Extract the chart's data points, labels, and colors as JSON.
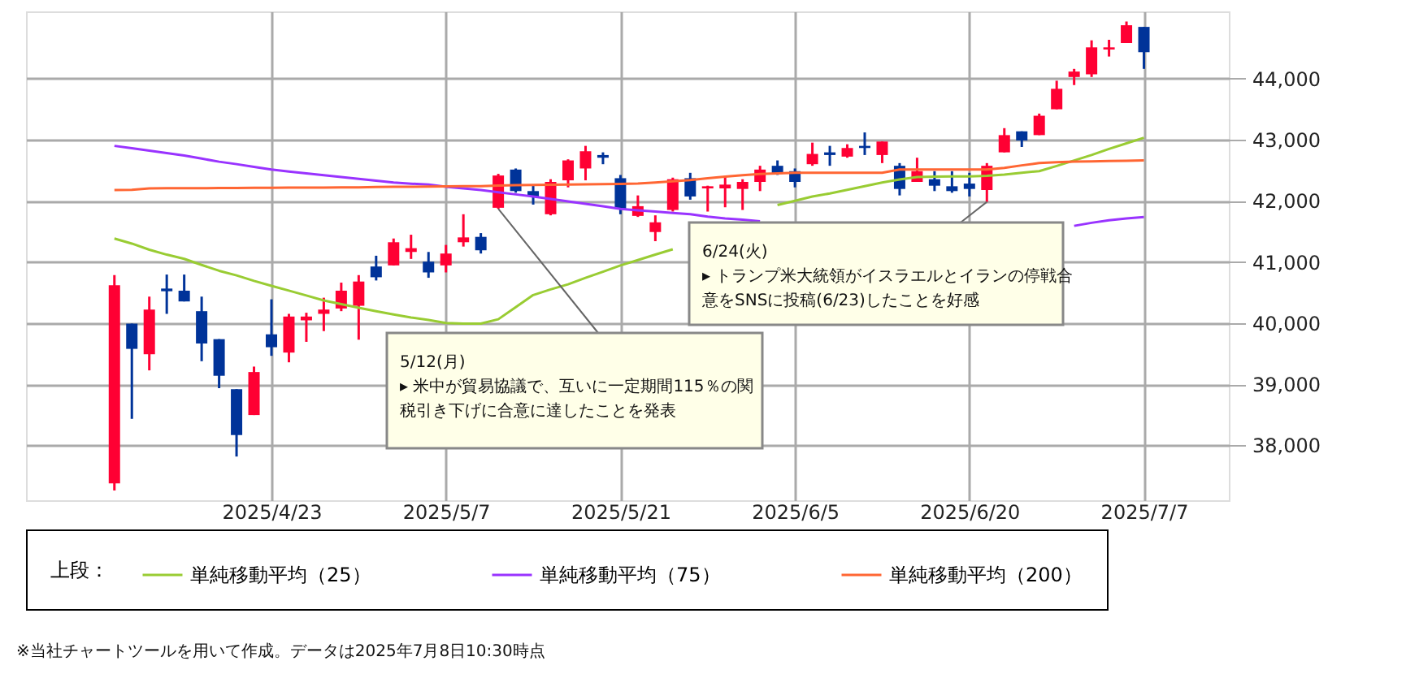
{
  "chart_data": {
    "type": "candlestick",
    "categories": [
      null,
      null,
      null,
      null,
      null,
      null,
      null,
      null,
      null,
      "2025/4/23",
      null,
      null,
      null,
      null,
      null,
      null,
      null,
      null,
      null,
      "2025/5/7",
      null,
      null,
      null,
      null,
      null,
      null,
      null,
      null,
      null,
      "2025/5/21",
      null,
      null,
      null,
      null,
      null,
      null,
      null,
      null,
      null,
      "2025/6/5",
      null,
      null,
      null,
      null,
      null,
      null,
      null,
      null,
      null,
      "2025/6/20",
      null,
      null,
      null,
      null,
      null,
      null,
      null,
      null,
      null,
      "2025/7/7"
    ],
    "ohlc": [
      [
        37375,
        40784,
        37260,
        40617
      ],
      [
        39990,
        39990,
        38432,
        39577
      ],
      [
        39489,
        40432,
        39225,
        40220
      ],
      [
        40564,
        40793,
        40150,
        40520
      ],
      [
        40529,
        40793,
        40353,
        40353
      ],
      [
        40194,
        40432,
        39375,
        39665
      ],
      [
        39736,
        39736,
        38934,
        39137
      ],
      [
        38917,
        38917,
        37815,
        38168
      ],
      [
        38494,
        39287,
        38494,
        39198
      ],
      [
        39815,
        40388,
        39463,
        39604
      ],
      [
        39516,
        40150,
        39357,
        40106
      ],
      [
        40044,
        40168,
        39692,
        40106
      ],
      [
        40150,
        40414,
        39868,
        40220
      ],
      [
        40238,
        40661,
        40194,
        40529
      ],
      [
        40282,
        40784,
        39727,
        40679
      ],
      [
        40925,
        41101,
        40696,
        40749
      ],
      [
        40943,
        41383,
        40943,
        41322
      ],
      [
        41163,
        41445,
        41049,
        41225
      ],
      [
        41004,
        41163,
        40740,
        40828
      ],
      [
        40943,
        41278,
        40828,
        41137
      ],
      [
        41322,
        41780,
        41251,
        41401
      ],
      [
        41410,
        41471,
        41137,
        41190
      ],
      [
        41886,
        42441,
        41868,
        42414
      ],
      [
        42511,
        42529,
        42132,
        42159
      ],
      [
        42159,
        42265,
        41938,
        42071
      ],
      [
        41780,
        42353,
        41762,
        42309
      ],
      [
        42335,
        42679,
        42220,
        42661
      ],
      [
        42529,
        42899,
        42335,
        42811
      ],
      [
        42749,
        42793,
        42599,
        42705
      ],
      [
        42370,
        42423,
        41780,
        41868
      ],
      [
        41753,
        42088,
        41736,
        41912
      ],
      [
        41489,
        41762,
        41339,
        41648
      ],
      [
        41850,
        42379,
        41824,
        42353
      ],
      [
        42370,
        42458,
        42018,
        42071
      ],
      [
        42203,
        42247,
        41824,
        42238
      ],
      [
        42203,
        42397,
        41894,
        42265
      ],
      [
        42194,
        42353,
        41850,
        42309
      ],
      [
        42309,
        42573,
        42159,
        42511
      ],
      [
        42573,
        42661,
        42423,
        42441
      ],
      [
        42485,
        42529,
        42220,
        42309
      ],
      [
        42599,
        42952,
        42573,
        42767
      ],
      [
        42793,
        42899,
        42573,
        42749
      ],
      [
        42723,
        42925,
        42705,
        42864
      ],
      [
        42899,
        43119,
        42749,
        42864
      ],
      [
        42749,
        42970,
        42617,
        42970
      ],
      [
        42573,
        42617,
        42088,
        42194
      ],
      [
        42309,
        42705,
        42309,
        42485
      ],
      [
        42353,
        42485,
        42159,
        42247
      ],
      [
        42238,
        42485,
        42132,
        42159
      ],
      [
        42282,
        42458,
        42071,
        42194
      ],
      [
        42176,
        42617,
        41982,
        42573
      ],
      [
        42793,
        43189,
        42793,
        43075
      ],
      [
        43137,
        43137,
        42881,
        42987
      ],
      [
        43075,
        43427,
        43075,
        43392
      ],
      [
        43498,
        43965,
        43498,
        43833
      ],
      [
        44026,
        44159,
        43894,
        44115
      ],
      [
        44070,
        44626,
        44026,
        44511
      ],
      [
        44476,
        44635,
        44361,
        44511
      ],
      [
        44582,
        44934,
        44582,
        44873
      ],
      [
        44846,
        44846,
        44159,
        44432
      ]
    ],
    "colors": [
      "#ff0033",
      "#003399",
      "#ff0033",
      "#003399",
      "#003399",
      "#003399",
      "#003399",
      "#003399",
      "#ff0033",
      "#003399",
      "#ff0033",
      "#ff0033",
      "#ff0033",
      "#ff0033",
      "#ff0033",
      "#003399",
      "#ff0033",
      "#ff0033",
      "#003399",
      "#ff0033",
      "#ff0033",
      "#003399",
      "#ff0033",
      "#003399",
      "#003399",
      "#ff0033",
      "#ff0033",
      "#ff0033",
      "#003399",
      "#003399",
      "#ff0033",
      "#ff0033",
      "#ff0033",
      "#003399",
      "#ff0033",
      "#ff0033",
      "#ff0033",
      "#ff0033",
      "#003399",
      "#003399",
      "#ff0033",
      "#003399",
      "#ff0033",
      "#003399",
      "#ff0033",
      "#003399",
      "#ff0033",
      "#003399",
      "#003399",
      "#003399",
      "#ff0033",
      "#ff0033",
      "#003399",
      "#ff0033",
      "#ff0033",
      "#ff0033",
      "#ff0033",
      "#ff0033",
      "#ff0033",
      "#003399"
    ],
    "series": [
      {
        "name": "単純移動平均（25）",
        "type": "line",
        "color": "#99cc33",
        "values": [
          41383,
          41300,
          41200,
          41119,
          41050,
          40950,
          40855,
          40780,
          40690,
          40608,
          40530,
          40450,
          40370,
          40310,
          40250,
          40194,
          40140,
          40090,
          40050,
          40000,
          39990,
          39990,
          40062,
          40260,
          40458,
          40550,
          40634,
          40740,
          40840,
          40943,
          41030,
          41120,
          41207,
          null,
          null,
          null,
          null,
          null,
          41930,
          42000,
          42071,
          42120,
          42180,
          42240,
          42300,
          42350,
          42390,
          42397,
          42400,
          42400,
          42410,
          42430,
          42460,
          42485,
          42570,
          42660,
          42750,
          42850,
          42940,
          43031
        ]
      },
      {
        "name": "単純移動平均（75）",
        "type": "line",
        "color": "#9933ff",
        "values": [
          42899,
          42860,
          42820,
          42780,
          42740,
          42690,
          42640,
          42600,
          42555,
          42511,
          42480,
          42450,
          42420,
          42390,
          42360,
          42330,
          42300,
          42280,
          42265,
          42230,
          42203,
          42176,
          42140,
          42105,
          42071,
          42030,
          41990,
          41950,
          41910,
          41868,
          41845,
          41825,
          41800,
          41780,
          41740,
          41710,
          41690,
          41665,
          null,
          null,
          null,
          null,
          null,
          null,
          null,
          null,
          null,
          null,
          null,
          null,
          null,
          null,
          null,
          null,
          null,
          41590,
          41640,
          41680,
          41710,
          41736
        ]
      },
      {
        "name": "単純移動平均（200）",
        "type": "line",
        "color": "#ff6633",
        "values": [
          42176,
          42180,
          42203,
          42205,
          42206,
          42207,
          42208,
          42210,
          42212,
          42214,
          42215,
          42216,
          42217,
          42218,
          42220,
          42225,
          42228,
          42230,
          42232,
          42235,
          42238,
          42238,
          42250,
          42255,
          42258,
          42262,
          42265,
          42268,
          42272,
          42275,
          42282,
          42300,
          42320,
          42340,
          42370,
          42397,
          42420,
          42440,
          42450,
          42458,
          42458,
          42458,
          42458,
          42458,
          42458,
          42511,
          42511,
          42511,
          42511,
          42511,
          42511,
          42540,
          42580,
          42617,
          42630,
          42640,
          42645,
          42650,
          42655,
          42661
        ]
      }
    ],
    "ylim": [
      37100,
      45100
    ],
    "yticks": [
      {
        "value": 38000,
        "label": "38,000"
      },
      {
        "value": 39000,
        "label": "39,000"
      },
      {
        "value": 40000,
        "label": "40,000"
      },
      {
        "value": 41000,
        "label": "41,000"
      },
      {
        "value": 42000,
        "label": "42,000"
      },
      {
        "value": 43000,
        "label": "43,000"
      },
      {
        "value": 44000,
        "label": "44,000"
      }
    ],
    "grid": true,
    "legend": "bottom",
    "legend_title": "上段：",
    "annotations": [
      "5/12(月)",
      "▸ 米中が貿易協議で、互いに一定期間115％の関税引き下げに合意に達したことを発表",
      "6/24(火)",
      "▸ トランプ米大統領がイスラエルとイランの停戦合意をSNSに投稿(6/23)したことを好感",
      "※当社チャートツールを用いて作成。データは2025年7月8日10:30時点"
    ]
  }
}
